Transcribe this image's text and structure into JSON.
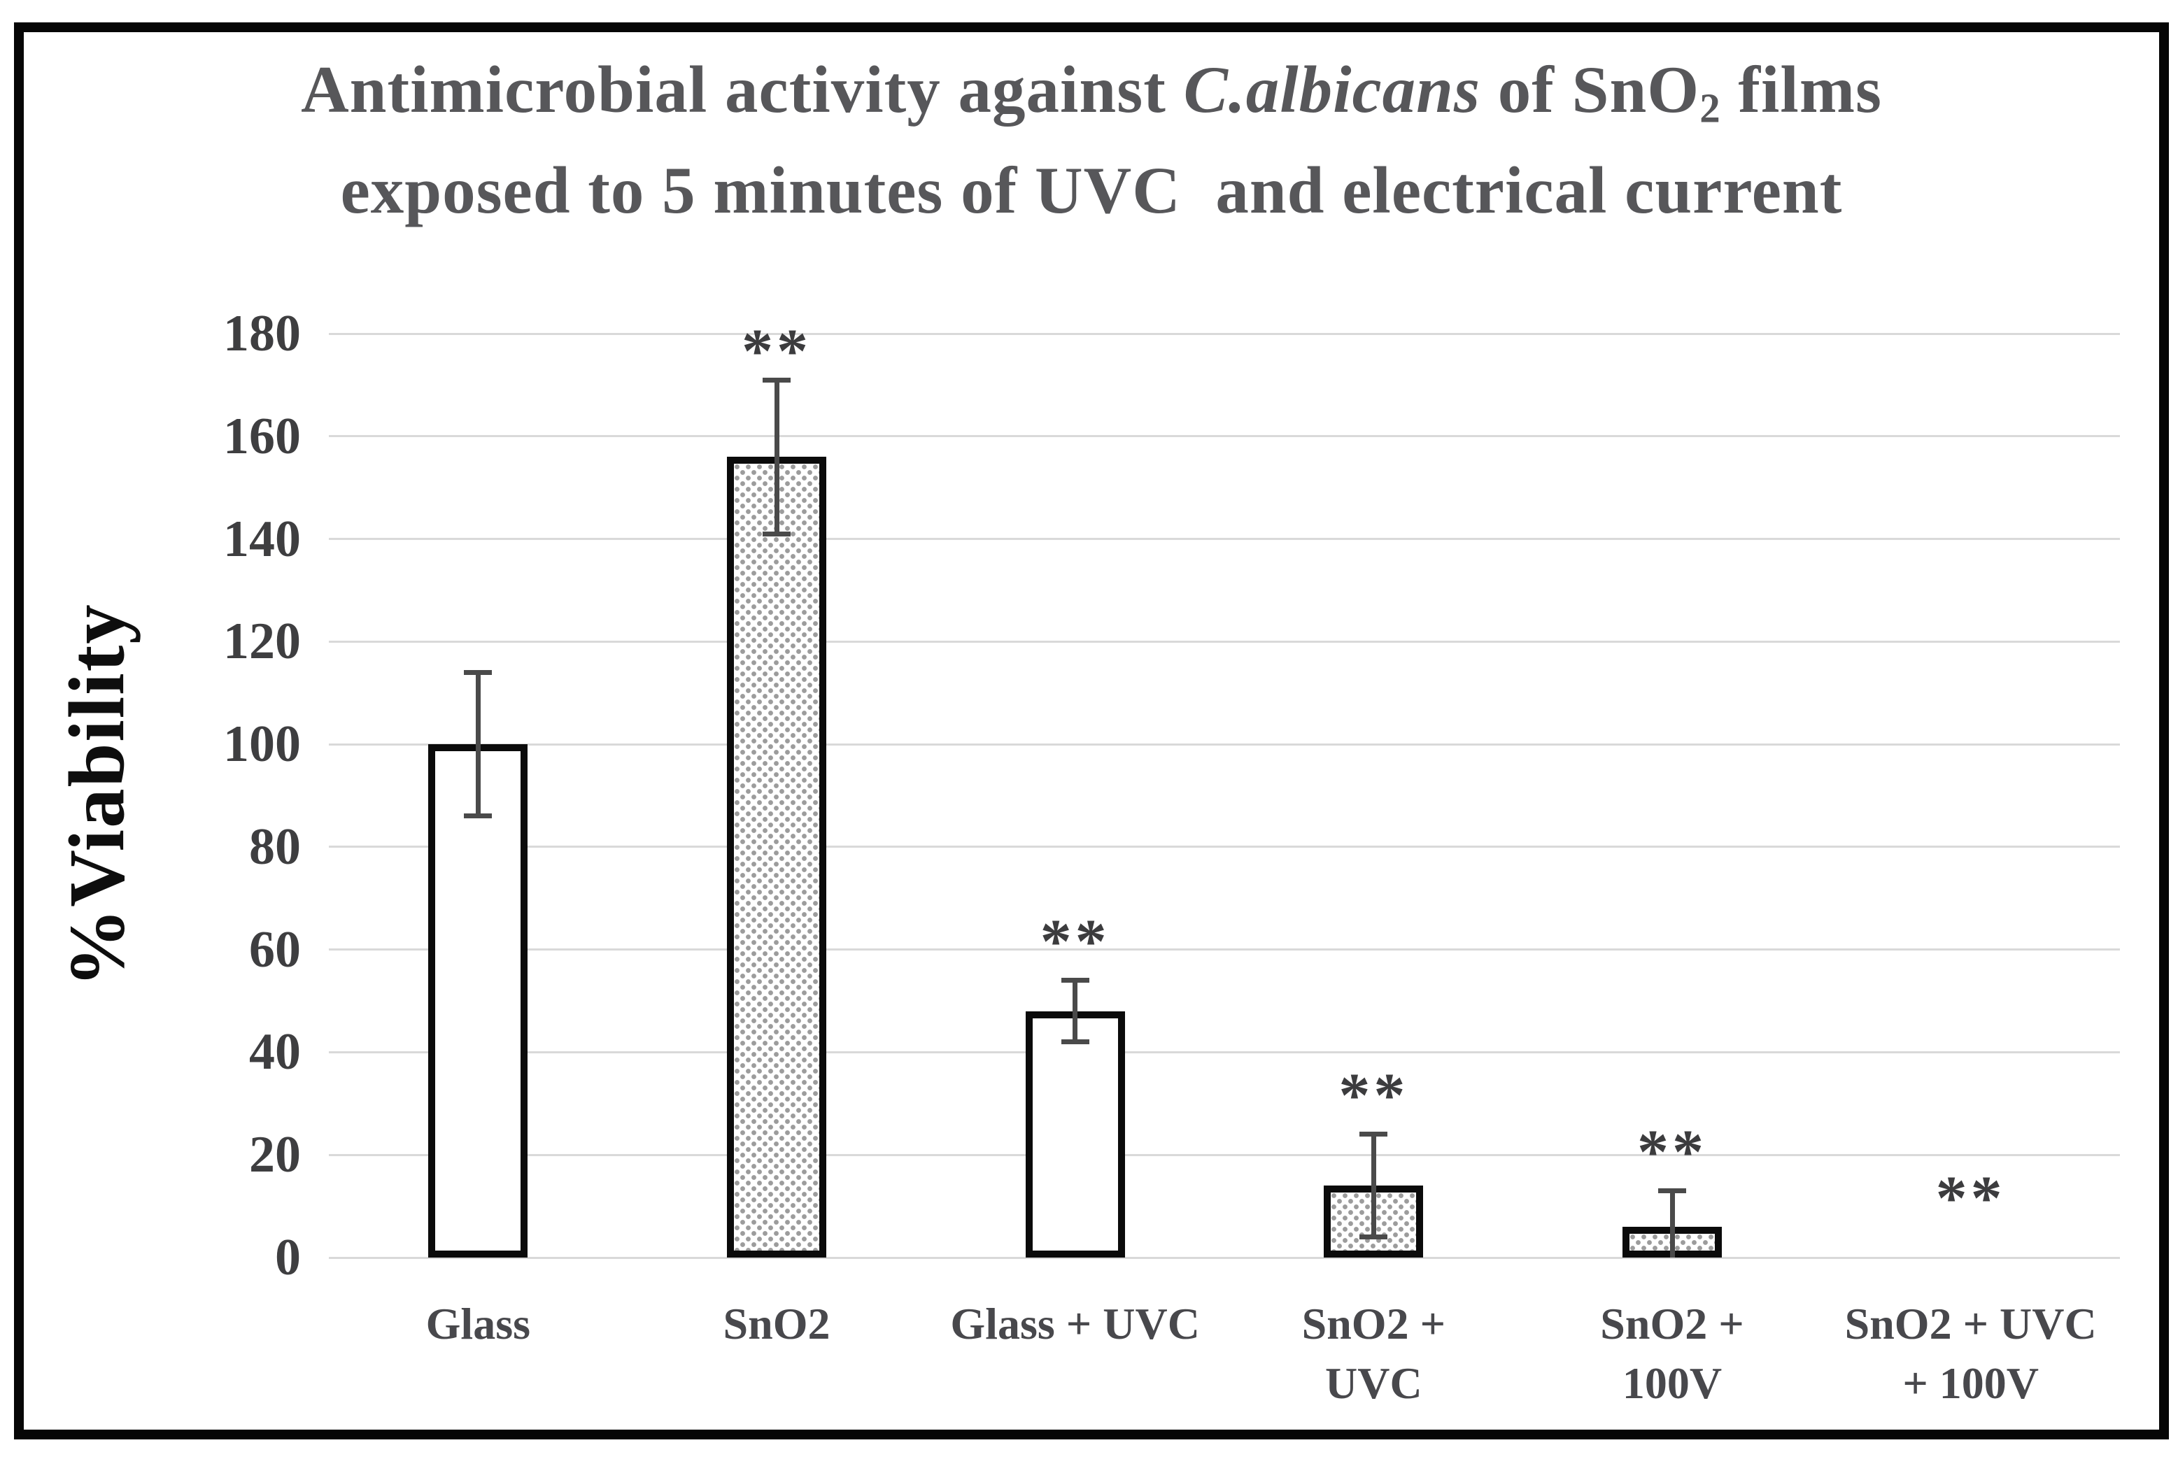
{
  "figure": {
    "title": {
      "line1_segments": [
        {
          "text": "Antimicrobial activity against "
        },
        {
          "text": "C.albicans",
          "style": "italic"
        },
        {
          "text": " of SnO"
        },
        {
          "text": "2",
          "style": "subscript"
        },
        {
          "text": " films"
        }
      ],
      "line2": "exposed to 5 minutes of UVC  and electrical current"
    }
  },
  "chart_data": {
    "type": "bar",
    "title": "Antimicrobial activity against C.albicans of SnO2 films exposed to 5 minutes of UVC  and electrical current",
    "xlabel": "",
    "ylabel": "%Viability",
    "ylim": [
      0,
      180
    ],
    "ytick_interval": 20,
    "yticks": [
      180,
      160,
      140,
      120,
      100,
      80,
      60,
      40,
      20,
      0
    ],
    "grid": "horizontal",
    "legend": "none",
    "categories": [
      "Glass",
      "SnO2",
      "Glass + UVC",
      "SnO2 + UVC",
      "SnO2 + 100V",
      "SnO2 + UVC + 100V"
    ],
    "category_label_lines": [
      [
        "Glass"
      ],
      [
        "SnO2"
      ],
      [
        "Glass + UVC"
      ],
      [
        "SnO2 +",
        "UVC"
      ],
      [
        "SnO2 +",
        "100V"
      ],
      [
        "SnO2 + UVC",
        "+ 100V"
      ]
    ],
    "values": [
      100,
      156,
      48,
      14,
      6,
      0
    ],
    "error_bars": [
      14,
      15,
      6,
      10,
      7,
      0
    ],
    "significance": [
      "",
      "**",
      "**",
      "**",
      "**",
      "**"
    ],
    "sig_marker_heights": [
      null,
      178,
      63,
      33,
      22,
      13
    ],
    "bar_fill": [
      "white",
      "dot-pattern",
      "white",
      "dot-pattern",
      "dot-pattern",
      "none"
    ],
    "colors": {
      "background": "#ffffff",
      "frame_border": "#060606",
      "bar_border": "#0b0b0b",
      "bar_white_fill": "#ffffff",
      "pattern_dot": "#9c9c9c",
      "gridline": "#d9d9d9",
      "error_bar": "#4a4a4a",
      "title_text": "#57575a",
      "tick_text": "#3e3e40",
      "category_text": "#48484c",
      "axis_title_text": "#0e0e0e",
      "sig_text": "#3c3c3e"
    }
  }
}
